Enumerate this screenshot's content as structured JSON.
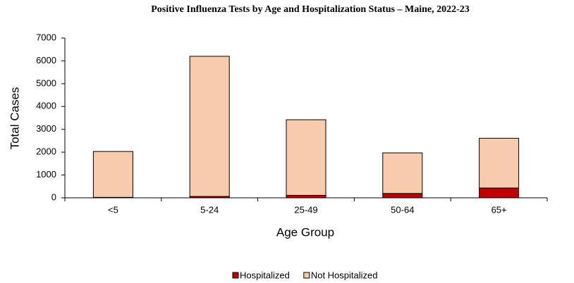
{
  "chart_data": {
    "type": "stacked_bar",
    "title": "Positive Influenza Tests by Age and Hospitalization Status – Maine, 2022-23",
    "x_label": "Age Group",
    "y_label": "Total Cases",
    "categories": [
      "<5",
      "5-24",
      "25-49",
      "50-64",
      "65+"
    ],
    "series": [
      {
        "name": "Hospitalized",
        "color": "#c00000",
        "values": [
          20,
          60,
          110,
          190,
          430
        ]
      },
      {
        "name": "Not Hospitalized",
        "color": "#f8cbad",
        "values": [
          2010,
          6140,
          3310,
          1780,
          2180
        ]
      }
    ],
    "ylim": [
      0,
      7000
    ],
    "yticks": [
      0,
      1000,
      2000,
      3000,
      4000,
      5000,
      6000,
      7000
    ],
    "grid": false,
    "legend": "bottom"
  }
}
